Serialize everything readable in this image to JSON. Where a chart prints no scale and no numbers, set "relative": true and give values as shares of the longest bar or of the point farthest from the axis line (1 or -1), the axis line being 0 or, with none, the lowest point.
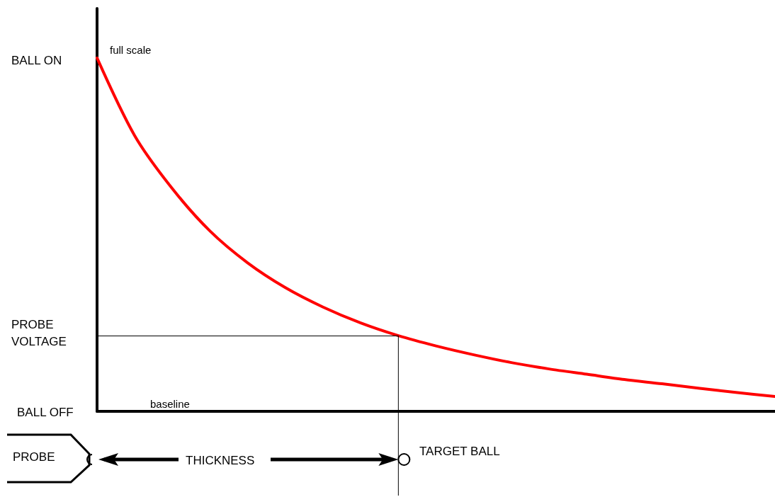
{
  "chart_data": {
    "type": "line",
    "relative": true,
    "categories": [
      null,
      null,
      null,
      null,
      null,
      null,
      null,
      null,
      null,
      null,
      null,
      null,
      null,
      null,
      null,
      null,
      null,
      null,
      null
    ],
    "series": [
      {
        "color": "#ff0000",
        "values": [
          1.0,
          0.78,
          0.63,
          0.51,
          0.42,
          0.35,
          0.295,
          0.25,
          0.214,
          0.185,
          0.16,
          0.138,
          0.12,
          0.105,
          0.09,
          0.078,
          0.065,
          0.053,
          0.042
        ]
      }
    ],
    "ref_lines": [
      {
        "axis": "y",
        "value": 0.214,
        "color": "#000000"
      }
    ],
    "annotations": [
      "BALL ON",
      "PROBE\nVOLTAGE",
      "BALL OFF",
      "full scale",
      "baseline",
      "PROBE",
      "THICKNESS",
      "TARGET BALL"
    ],
    "marker": "none",
    "line_style": "solid"
  }
}
